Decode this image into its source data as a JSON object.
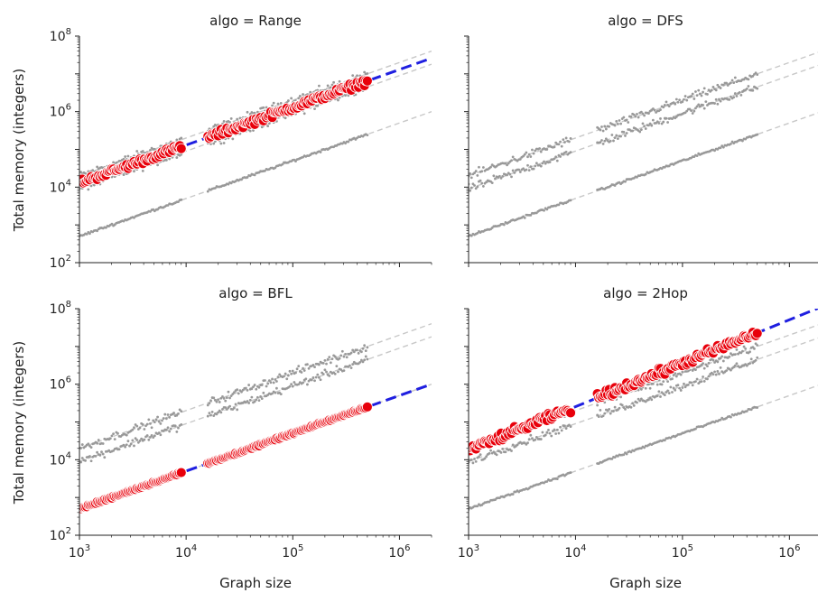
{
  "chart_data": {
    "type": "scatter",
    "scale": "log-log",
    "xlabel": "Graph size",
    "ylabel": "Total memory (integers)",
    "xlim": [
      1000,
      2000000
    ],
    "ylim": [
      100,
      100000000
    ],
    "x_ticks": [
      {
        "base": "10",
        "exp": "3"
      },
      {
        "base": "10",
        "exp": "4"
      },
      {
        "base": "10",
        "exp": "5"
      },
      {
        "base": "10",
        "exp": "6"
      }
    ],
    "y_ticks": [
      {
        "base": "10",
        "exp": "2"
      },
      {
        "base": "10",
        "exp": "4"
      },
      {
        "base": "10",
        "exp": "6"
      },
      {
        "base": "10",
        "exp": "8"
      }
    ],
    "colors": {
      "highlight": "#e8000b",
      "fit": "#1f1fe0",
      "background": "#999999",
      "background_line": "#c8c8c8"
    },
    "reference_fits": [
      {
        "slope": 1.0,
        "at_1000": 20000
      },
      {
        "slope": 1.0,
        "at_1000": 9000
      },
      {
        "slope": 1.0,
        "at_1000": 500
      }
    ],
    "panels": [
      {
        "title": "algo = Range",
        "highlight": {
          "slope": 1.0,
          "at_1000": 13000,
          "scatter": 0.08
        }
      },
      {
        "title": "algo = DFS",
        "highlight": null
      },
      {
        "title": "algo = BFL",
        "highlight": {
          "slope": 1.0,
          "at_1000": 500,
          "scatter": 0.02
        }
      },
      {
        "title": "algo = 2Hop",
        "highlight": {
          "slope": 1.15,
          "at_1000": 18000,
          "scatter": 0.1
        }
      }
    ]
  }
}
